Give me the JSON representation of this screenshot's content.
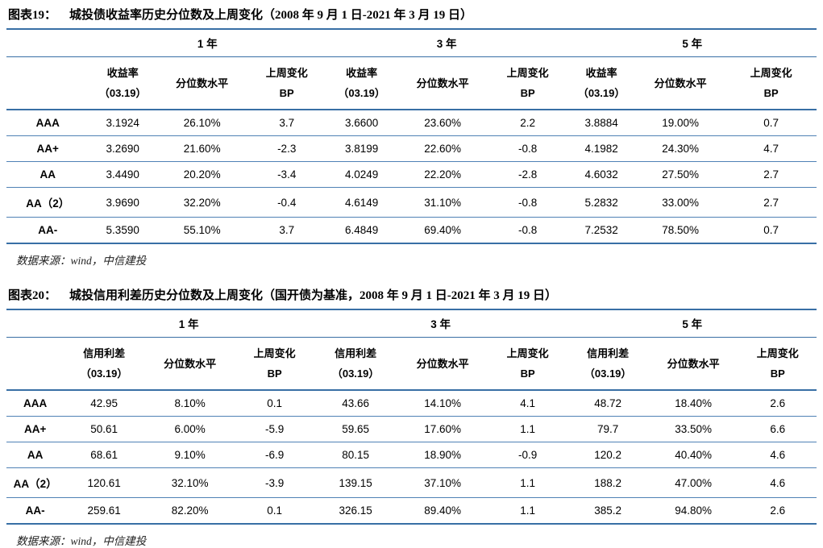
{
  "colors": {
    "rule_major": "#386fa5",
    "rule_row": "#4f81b5"
  },
  "tables": [
    {
      "title_label": "图表19：",
      "title_text": "城投债收益率历史分位数及上周变化（2008 年 9 月 1 日-2021 年 3 月 19 日）",
      "group_headers": [
        "1 年",
        "3 年",
        "5 年"
      ],
      "col_headers": {
        "measure_line1": "收益率",
        "measure_line2": "（03.19）",
        "percentile": "分位数水平",
        "change_line1": "上周变化",
        "change_line2": "BP"
      },
      "rows": [
        {
          "label": "AAA",
          "values": [
            "3.1924",
            "26.10%",
            "3.7",
            "3.6600",
            "23.60%",
            "2.2",
            "3.8884",
            "19.00%",
            "0.7"
          ]
        },
        {
          "label": "AA+",
          "values": [
            "3.2690",
            "21.60%",
            "-2.3",
            "3.8199",
            "22.60%",
            "-0.8",
            "4.1982",
            "24.30%",
            "4.7"
          ]
        },
        {
          "label": "AA",
          "values": [
            "3.4490",
            "20.20%",
            "-3.4",
            "4.0249",
            "22.20%",
            "-2.8",
            "4.6032",
            "27.50%",
            "2.7"
          ]
        },
        {
          "label": "AA（2）",
          "values": [
            "3.9690",
            "32.20%",
            "-0.4",
            "4.6149",
            "31.10%",
            "-0.8",
            "5.2832",
            "33.00%",
            "2.7"
          ]
        },
        {
          "label": "AA-",
          "values": [
            "5.3590",
            "55.10%",
            "3.7",
            "6.4849",
            "69.40%",
            "-0.8",
            "7.2532",
            "78.50%",
            "0.7"
          ]
        }
      ],
      "source": "数据来源：wind，中信建投"
    },
    {
      "title_label": "图表20：",
      "title_text": "城投信用利差历史分位数及上周变化（国开债为基准，2008 年 9 月 1 日-2021 年 3 月 19 日）",
      "group_headers": [
        "1 年",
        "3 年",
        "5 年"
      ],
      "col_headers": {
        "measure_line1": "信用利差",
        "measure_line2": "（03.19）",
        "percentile": "分位数水平",
        "change_line1": "上周变化",
        "change_line2": "BP"
      },
      "rows": [
        {
          "label": "AAA",
          "values": [
            "42.95",
            "8.10%",
            "0.1",
            "43.66",
            "14.10%",
            "4.1",
            "48.72",
            "18.40%",
            "2.6"
          ]
        },
        {
          "label": "AA+",
          "values": [
            "50.61",
            "6.00%",
            "-5.9",
            "59.65",
            "17.60%",
            "1.1",
            "79.7",
            "33.50%",
            "6.6"
          ]
        },
        {
          "label": "AA",
          "values": [
            "68.61",
            "9.10%",
            "-6.9",
            "80.15",
            "18.90%",
            "-0.9",
            "120.2",
            "40.40%",
            "4.6"
          ]
        },
        {
          "label": "AA（2）",
          "values": [
            "120.61",
            "32.10%",
            "-3.9",
            "139.15",
            "37.10%",
            "1.1",
            "188.2",
            "47.00%",
            "4.6"
          ]
        },
        {
          "label": "AA-",
          "values": [
            "259.61",
            "82.20%",
            "0.1",
            "326.15",
            "89.40%",
            "1.1",
            "385.2",
            "94.80%",
            "2.6"
          ]
        }
      ],
      "source": "数据来源：wind，中信建投"
    }
  ]
}
